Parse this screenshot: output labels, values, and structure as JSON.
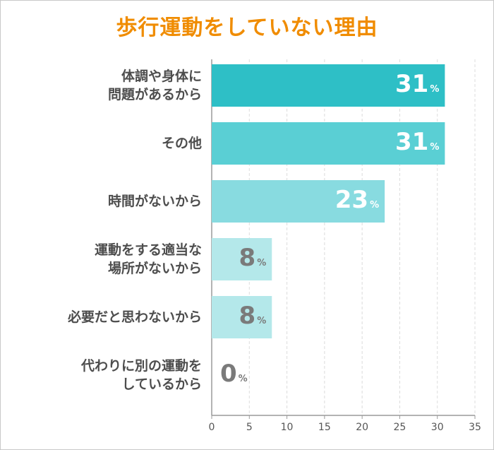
{
  "chart_data": {
    "type": "bar",
    "orientation": "horizontal",
    "title": "歩行運動をしていない理由",
    "categories": [
      [
        "体調や身体に",
        "問題があるから"
      ],
      [
        "その他"
      ],
      [
        "時間がないから"
      ],
      [
        "運動をする適当な",
        "場所がないから"
      ],
      [
        "必要だと思わないから"
      ],
      [
        "代わりに別の運動を",
        "しているから"
      ]
    ],
    "values": [
      31,
      31,
      23,
      8,
      8,
      0
    ],
    "value_unit": "%",
    "xlim": [
      0,
      35
    ],
    "xticks": [
      "0",
      "5",
      "10",
      "15",
      "20",
      "25",
      "30",
      "35"
    ],
    "grid": true,
    "colors": {
      "title": "#f08c00",
      "bars": [
        "#2ebfc6",
        "#5acfd4",
        "#88dbe0",
        "#b4e8ea",
        "#b4e8ea",
        "#b4e8ea"
      ],
      "value_text_on_bar": "#ffffff",
      "value_text_off_bar": "#7a7a7a",
      "grid": "#dcdcdc",
      "axis": "#9a9a9a"
    }
  }
}
